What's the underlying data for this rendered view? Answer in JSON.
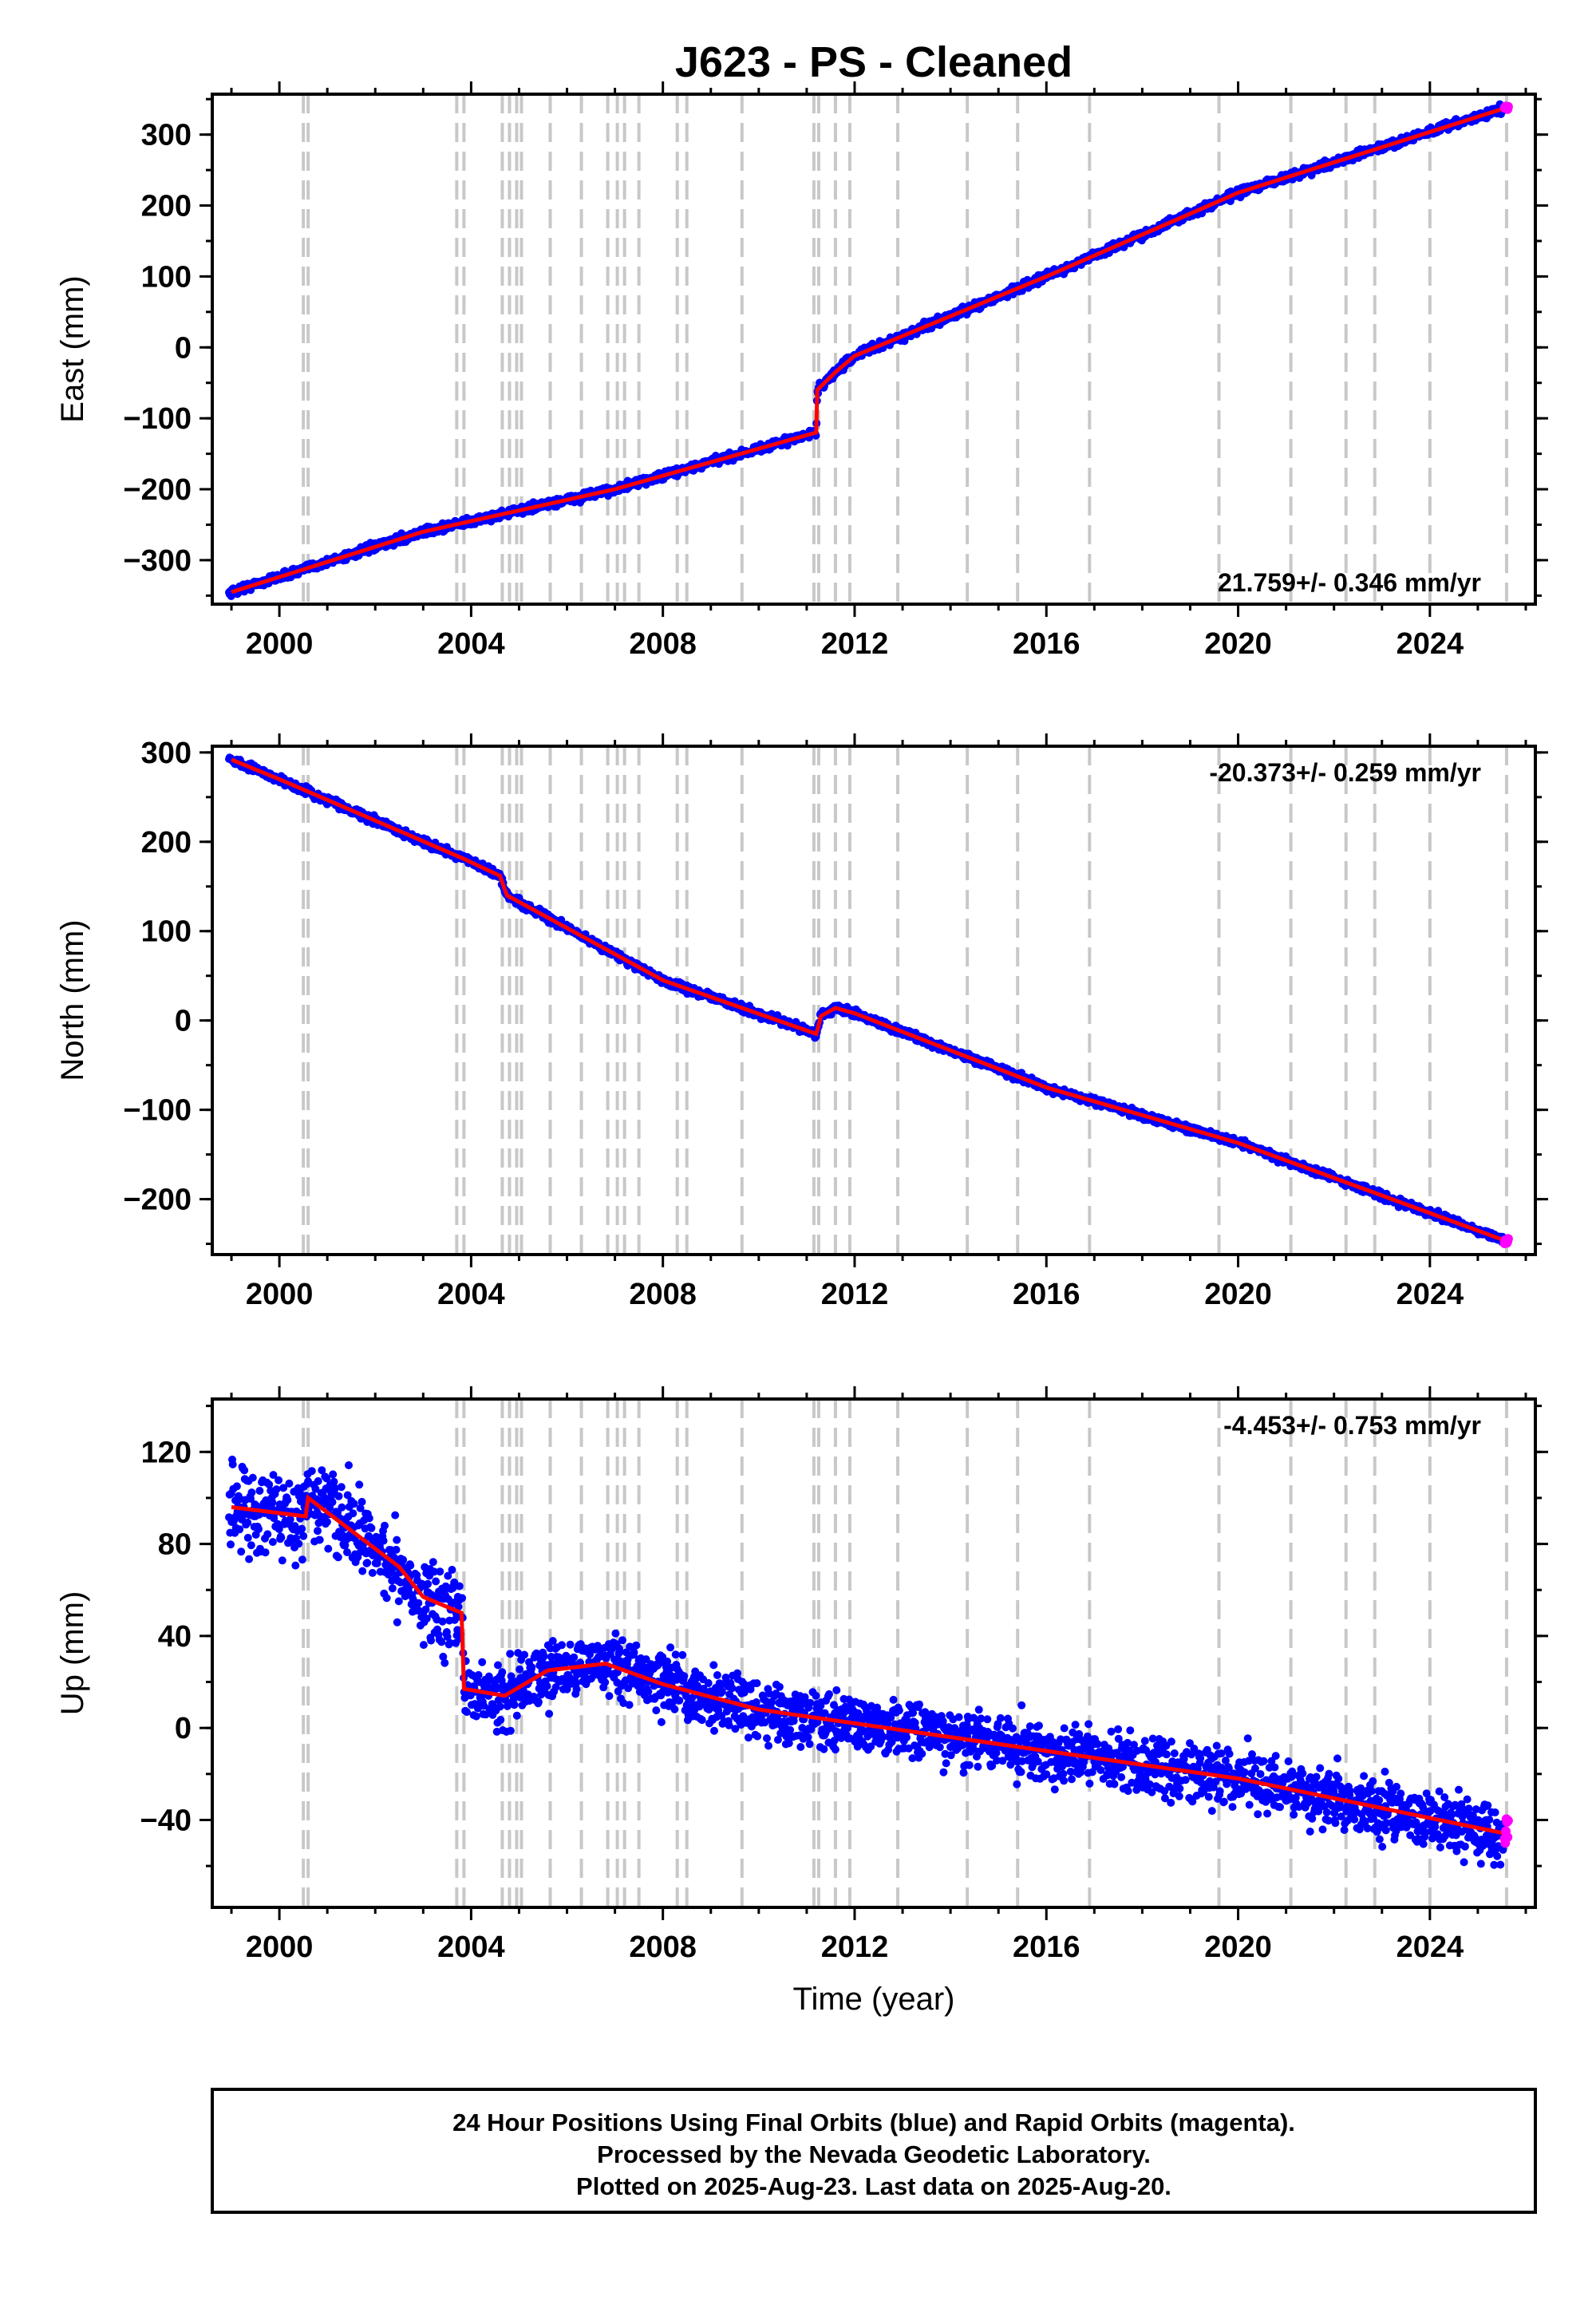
{
  "chart_data": {
    "type": "scatter",
    "title": "J623  - PS - Cleaned",
    "x_label": "Time (year)",
    "x_range": [
      1998.6,
      2026.2
    ],
    "x_ticks": [
      2000,
      2004,
      2008,
      2012,
      2016,
      2020,
      2024
    ],
    "event_lines": [
      2000.5,
      2000.6,
      2003.7,
      2003.85,
      2004.65,
      2004.8,
      2004.95,
      2005.05,
      2005.65,
      2006.3,
      2006.85,
      2007.05,
      2007.2,
      2007.5,
      2008.3,
      2008.5,
      2009.65,
      2011.15,
      2011.25,
      2011.6,
      2011.9,
      2012.9,
      2014.35,
      2015.4,
      2016.9,
      2019.6,
      2021.1,
      2022.25,
      2022.85,
      2024.0,
      2025.6
    ],
    "legend": "24 Hour Positions Using Final Orbits (blue) and Rapid Orbits (magenta).",
    "footer": [
      "24 Hour Positions Using Final Orbits (blue) and Rapid Orbits (magenta).",
      "Processed by the Nevada Geodetic Laboratory.",
      "Plotted on 2025-Aug-23. Last data on 2025-Aug-20."
    ],
    "panels": [
      {
        "name": "East",
        "y_label": "East (mm)",
        "y_range": [
          -362,
          357
        ],
        "y_ticks": [
          -300,
          -200,
          -100,
          0,
          100,
          200,
          300
        ],
        "rate": "21.759+/- 0.346 mm/yr",
        "rate_position": "bottom-right",
        "noise_mm": 4,
        "model": [
          [
            1999.0,
            -345
          ],
          [
            2003.0,
            -260
          ],
          [
            2007.0,
            -200
          ],
          [
            2011.2,
            -120
          ],
          [
            2011.22,
            -60
          ],
          [
            2011.6,
            -35
          ],
          [
            2012.0,
            -12
          ],
          [
            2016.0,
            100
          ],
          [
            2020.0,
            218
          ],
          [
            2025.6,
            338
          ]
        ]
      },
      {
        "name": "North",
        "y_label": "North (mm)",
        "y_range": [
          -262,
          307
        ],
        "y_ticks": [
          -200,
          -100,
          0,
          100,
          200,
          300
        ],
        "rate": "-20.373+/- 0.259 mm/yr",
        "rate_position": "top-right",
        "noise_mm": 3,
        "model": [
          [
            1999.0,
            292
          ],
          [
            2000.0,
            270
          ],
          [
            2003.8,
            182
          ],
          [
            2004.6,
            162
          ],
          [
            2004.75,
            140
          ],
          [
            2008.0,
            45
          ],
          [
            2011.2,
            -15
          ],
          [
            2011.3,
            5
          ],
          [
            2011.6,
            14
          ],
          [
            2012.0,
            8
          ],
          [
            2016.0,
            -75
          ],
          [
            2020.0,
            -137
          ],
          [
            2025.6,
            -247
          ]
        ]
      },
      {
        "name": "Up",
        "y_label": "Up (mm)",
        "y_range": [
          -78,
          143
        ],
        "y_ticks": [
          -40,
          0,
          40,
          80,
          120
        ],
        "rate": "-4.453+/- 0.753 mm/yr",
        "rate_position": "top-right",
        "noise_mm": 9,
        "model": [
          [
            1999.0,
            96
          ],
          [
            2000.55,
            92
          ],
          [
            2000.6,
            100
          ],
          [
            2002.5,
            70
          ],
          [
            2003.0,
            57
          ],
          [
            2003.8,
            50
          ],
          [
            2003.85,
            17
          ],
          [
            2004.7,
            14
          ],
          [
            2005.6,
            25
          ],
          [
            2006.8,
            28
          ],
          [
            2008.0,
            19
          ],
          [
            2010.0,
            8
          ],
          [
            2012.0,
            2
          ],
          [
            2016.0,
            -10
          ],
          [
            2020.0,
            -22
          ],
          [
            2025.6,
            -46
          ]
        ]
      }
    ]
  }
}
